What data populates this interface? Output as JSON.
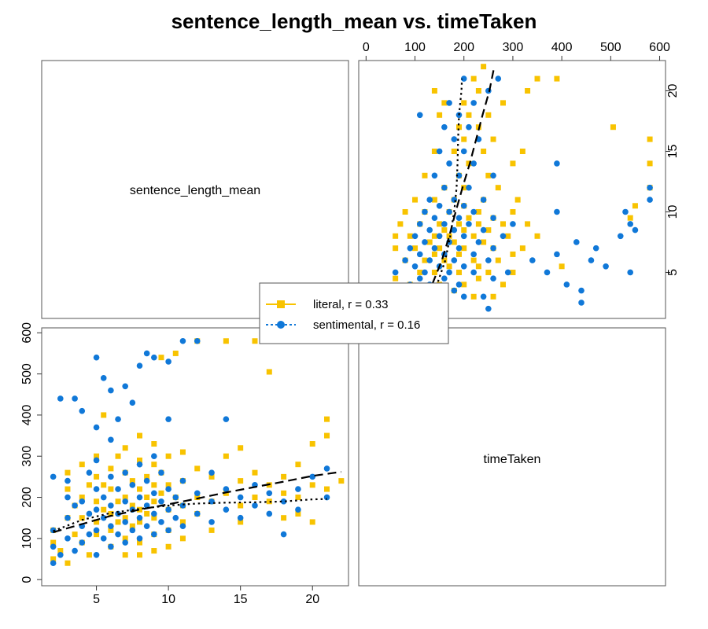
{
  "chart_data": {
    "type": "scatter",
    "title": "sentence_length_mean vs. timeTaken",
    "variables": [
      "sentence_length_mean",
      "timeTaken"
    ],
    "axes": {
      "sentence_length_mean": {
        "range": [
          1.2,
          22.5
        ],
        "ticks": [
          5,
          10,
          15,
          20
        ]
      },
      "timeTaken": {
        "range": [
          -15,
          612
        ],
        "ticks": [
          0,
          100,
          200,
          300,
          400,
          500,
          600
        ]
      }
    },
    "legend": {
      "placement": "center",
      "entries": [
        {
          "series": "literal",
          "label": "literal, r = 0.33"
        },
        {
          "series": "sentimental",
          "label": "sentimental, r = 0.16"
        }
      ]
    },
    "series": [
      {
        "name": "literal",
        "color": "#f8c300",
        "marker": "square",
        "fit": "dashed",
        "points": [
          [
            2,
            50
          ],
          [
            2,
            90
          ],
          [
            2,
            120
          ],
          [
            2.5,
            70
          ],
          [
            3,
            150
          ],
          [
            3,
            220
          ],
          [
            3,
            260
          ],
          [
            3,
            40
          ],
          [
            3.5,
            180
          ],
          [
            3.5,
            110
          ],
          [
            4,
            200
          ],
          [
            4,
            280
          ],
          [
            4,
            90
          ],
          [
            4,
            150
          ],
          [
            4.5,
            230
          ],
          [
            4.5,
            60
          ],
          [
            5,
            300
          ],
          [
            5,
            140
          ],
          [
            5,
            190
          ],
          [
            5,
            250
          ],
          [
            5,
            110
          ],
          [
            5.5,
            170
          ],
          [
            5.5,
            230
          ],
          [
            5.5,
            400
          ],
          [
            6,
            160
          ],
          [
            6,
            220
          ],
          [
            6,
            270
          ],
          [
            6,
            120
          ],
          [
            6,
            80
          ],
          [
            6.5,
            190
          ],
          [
            6.5,
            300
          ],
          [
            6.5,
            140
          ],
          [
            7,
            150
          ],
          [
            7,
            200
          ],
          [
            7,
            260
          ],
          [
            7,
            320
          ],
          [
            7,
            100
          ],
          [
            7,
            60
          ],
          [
            7.5,
            180
          ],
          [
            7.5,
            240
          ],
          [
            7.5,
            130
          ],
          [
            8,
            170
          ],
          [
            8,
            220
          ],
          [
            8,
            290
          ],
          [
            8,
            350
          ],
          [
            8,
            140
          ],
          [
            8,
            90
          ],
          [
            8,
            60
          ],
          [
            8.5,
            200
          ],
          [
            8.5,
            250
          ],
          [
            8.5,
            160
          ],
          [
            9,
            190
          ],
          [
            9,
            230
          ],
          [
            9,
            280
          ],
          [
            9,
            330
          ],
          [
            9,
            150
          ],
          [
            9,
            110
          ],
          [
            9,
            70
          ],
          [
            9.5,
            210
          ],
          [
            9.5,
            540
          ],
          [
            9.5,
            260
          ],
          [
            10,
            170
          ],
          [
            10,
            230
          ],
          [
            10,
            300
          ],
          [
            10,
            120
          ],
          [
            10,
            80
          ],
          [
            10.5,
            200
          ],
          [
            10.5,
            550
          ],
          [
            11,
            180
          ],
          [
            11,
            240
          ],
          [
            11,
            310
          ],
          [
            11,
            140
          ],
          [
            11,
            100
          ],
          [
            12,
            200
          ],
          [
            12,
            270
          ],
          [
            12,
            160
          ],
          [
            12,
            580
          ],
          [
            13,
            190
          ],
          [
            13,
            250
          ],
          [
            13,
            120
          ],
          [
            14,
            210
          ],
          [
            14,
            300
          ],
          [
            14,
            580
          ],
          [
            15,
            180
          ],
          [
            15,
            240
          ],
          [
            15,
            140
          ],
          [
            15,
            320
          ],
          [
            16,
            200
          ],
          [
            16,
            260
          ],
          [
            16,
            580
          ],
          [
            17,
            190
          ],
          [
            17,
            230
          ],
          [
            17,
            505
          ],
          [
            18,
            210
          ],
          [
            18,
            250
          ],
          [
            18,
            150
          ],
          [
            19,
            200
          ],
          [
            19,
            280
          ],
          [
            19,
            160
          ],
          [
            20,
            230
          ],
          [
            20,
            330
          ],
          [
            20,
            140
          ],
          [
            21,
            220
          ],
          [
            21,
            390
          ],
          [
            21,
            350
          ],
          [
            22,
            240
          ]
        ]
      },
      {
        "name": "sentimental",
        "color": "#1078d8",
        "marker": "circle",
        "fit": "dotted",
        "points": [
          [
            2,
            40
          ],
          [
            2,
            80
          ],
          [
            2,
            120
          ],
          [
            2,
            250
          ],
          [
            2.5,
            60
          ],
          [
            2.5,
            440
          ],
          [
            3,
            100
          ],
          [
            3,
            150
          ],
          [
            3,
            200
          ],
          [
            3,
            240
          ],
          [
            3.5,
            70
          ],
          [
            3.5,
            180
          ],
          [
            3.5,
            440
          ],
          [
            4,
            90
          ],
          [
            4,
            130
          ],
          [
            4,
            190
          ],
          [
            4,
            410
          ],
          [
            4.5,
            110
          ],
          [
            4.5,
            160
          ],
          [
            4.5,
            260
          ],
          [
            5,
            60
          ],
          [
            5,
            120
          ],
          [
            5,
            170
          ],
          [
            5,
            220
          ],
          [
            5,
            290
          ],
          [
            5,
            370
          ],
          [
            5,
            540
          ],
          [
            5.5,
            100
          ],
          [
            5.5,
            150
          ],
          [
            5.5,
            200
          ],
          [
            5.5,
            490
          ],
          [
            6,
            80
          ],
          [
            6,
            130
          ],
          [
            6,
            180
          ],
          [
            6,
            250
          ],
          [
            6,
            340
          ],
          [
            6,
            460
          ],
          [
            6.5,
            110
          ],
          [
            6.5,
            160
          ],
          [
            6.5,
            220
          ],
          [
            6.5,
            390
          ],
          [
            7,
            90
          ],
          [
            7,
            140
          ],
          [
            7,
            190
          ],
          [
            7,
            260
          ],
          [
            7,
            470
          ],
          [
            7.5,
            120
          ],
          [
            7.5,
            170
          ],
          [
            7.5,
            230
          ],
          [
            7.5,
            430
          ],
          [
            8,
            100
          ],
          [
            8,
            150
          ],
          [
            8,
            200
          ],
          [
            8,
            280
          ],
          [
            8,
            520
          ],
          [
            8.5,
            130
          ],
          [
            8.5,
            180
          ],
          [
            8.5,
            240
          ],
          [
            8.5,
            550
          ],
          [
            9,
            110
          ],
          [
            9,
            160
          ],
          [
            9,
            210
          ],
          [
            9,
            300
          ],
          [
            9,
            540
          ],
          [
            9.5,
            140
          ],
          [
            9.5,
            190
          ],
          [
            9.5,
            260
          ],
          [
            10,
            120
          ],
          [
            10,
            170
          ],
          [
            10,
            220
          ],
          [
            10,
            390
          ],
          [
            10,
            530
          ],
          [
            10.5,
            150
          ],
          [
            10.5,
            200
          ],
          [
            11,
            130
          ],
          [
            11,
            180
          ],
          [
            11,
            240
          ],
          [
            11,
            580
          ],
          [
            12,
            160
          ],
          [
            12,
            210
          ],
          [
            12,
            580
          ],
          [
            13,
            140
          ],
          [
            13,
            190
          ],
          [
            13,
            260
          ],
          [
            14,
            170
          ],
          [
            14,
            220
          ],
          [
            14,
            390
          ],
          [
            15,
            150
          ],
          [
            15,
            200
          ],
          [
            16,
            180
          ],
          [
            16,
            230
          ],
          [
            17,
            160
          ],
          [
            17,
            210
          ],
          [
            18,
            190
          ],
          [
            18,
            110
          ],
          [
            19,
            170
          ],
          [
            19,
            220
          ],
          [
            20,
            250
          ],
          [
            21,
            200
          ],
          [
            21,
            270
          ]
        ]
      }
    ],
    "fits": [
      {
        "series": "literal",
        "style": "dashed",
        "points": [
          [
            2,
            115
          ],
          [
            4,
            135
          ],
          [
            6,
            155
          ],
          [
            8,
            170
          ],
          [
            10,
            183
          ],
          [
            12,
            197
          ],
          [
            14,
            212
          ],
          [
            16,
            225
          ],
          [
            18,
            238
          ],
          [
            20,
            252
          ],
          [
            22,
            262
          ]
        ]
      },
      {
        "series": "sentimental",
        "style": "dotted",
        "points": [
          [
            2,
            118
          ],
          [
            4,
            145
          ],
          [
            6,
            162
          ],
          [
            8,
            172
          ],
          [
            10,
            180
          ],
          [
            12,
            185
          ],
          [
            14,
            187
          ],
          [
            16,
            188
          ],
          [
            18,
            190
          ],
          [
            20,
            195
          ],
          [
            21,
            196
          ]
        ]
      }
    ]
  }
}
